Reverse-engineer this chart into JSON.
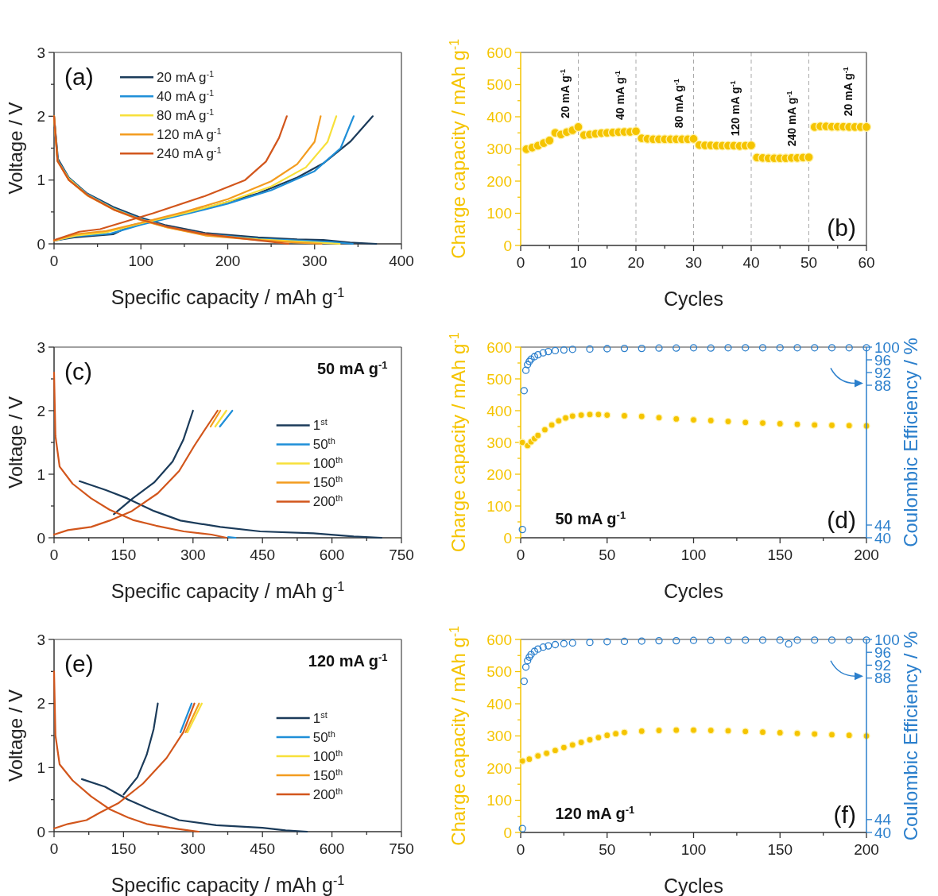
{
  "chart_data": [
    {
      "type": "line",
      "xlabel": "Specific capacity / mAh g$^{-1}$",
      "ylabel": "Voltage / V",
      "xlim": [
        0,
        400
      ],
      "ylim": [
        0,
        3
      ],
      "xticks": [
        0,
        {
          "value": 50,
          "label": null
        },
        100,
        {
          "value": 150,
          "label": null
        },
        200,
        {
          "value": 250,
          "label": null
        },
        300,
        {
          "value": 350,
          "label": null
        },
        400
      ],
      "yticks": [
        0,
        {
          "value": 0.5,
          "label": null
        },
        1,
        {
          "value": 1.5,
          "label": null
        },
        2,
        {
          "value": 2.5,
          "label": null
        },
        3
      ],
      "legend": "top left",
      "annotations": [
        "(a)"
      ],
      "series": [
        {
          "name": "20 mA g$^{-1}$",
          "color": "#1b3b5a",
          "x": [
            0,
            4.5,
            17,
            38,
            68,
            98,
            129,
            174,
            235,
            280,
            310,
            341,
            371
          ],
          "values": [
            2.0,
            1.33,
            1.04,
            0.79,
            0.58,
            0.42,
            0.29,
            0.17,
            0.1,
            0.07,
            0.06,
            0.02,
            0
          ]
        },
        {
          "color": "#1b3b5a",
          "x": [
            0,
            23,
            68,
            89,
            114,
            174,
            235,
            280,
            311,
            341,
            367
          ],
          "values": [
            0.05,
            0.1,
            0.15,
            0.29,
            0.37,
            0.56,
            0.79,
            1.04,
            1.27,
            1.6,
            2.0
          ]
        },
        {
          "name": "40 mA g$^{-1}$",
          "color": "#1f8fd8",
          "x": [
            0,
            4,
            17,
            38,
            68,
            98,
            130,
            175,
            235,
            290,
            320,
            344
          ],
          "values": [
            2.0,
            1.32,
            1.03,
            0.78,
            0.56,
            0.4,
            0.27,
            0.15,
            0.08,
            0.05,
            0.03,
            0
          ]
        },
        {
          "color": "#1f8fd8",
          "x": [
            0,
            25,
            65,
            100,
            150,
            200,
            250,
            300,
            330,
            345
          ],
          "values": [
            0.05,
            0.12,
            0.16,
            0.3,
            0.46,
            0.63,
            0.84,
            1.14,
            1.5,
            2.0
          ]
        },
        {
          "name": "80 mA g$^{-1}$",
          "color": "#f7e03a",
          "x": [
            0,
            4,
            17,
            38,
            68,
            98,
            130,
            175,
            235,
            290,
            329
          ],
          "values": [
            2.0,
            1.3,
            1.02,
            0.77,
            0.55,
            0.39,
            0.26,
            0.14,
            0.07,
            0.03,
            0
          ]
        },
        {
          "color": "#f7e03a",
          "x": [
            0,
            25,
            60,
            100,
            150,
            200,
            250,
            290,
            315,
            325
          ],
          "values": [
            0.05,
            0.13,
            0.18,
            0.32,
            0.48,
            0.66,
            0.9,
            1.2,
            1.6,
            2.0
          ]
        },
        {
          "name": "120 mA g$^{-1}$",
          "color": "#f39c1f",
          "x": [
            0,
            4,
            17,
            38,
            68,
            98,
            130,
            175,
            235,
            280,
            308
          ],
          "values": [
            2.0,
            1.3,
            1.0,
            0.76,
            0.54,
            0.38,
            0.26,
            0.13,
            0.06,
            0.02,
            0
          ]
        },
        {
          "color": "#f39c1f",
          "x": [
            0,
            25,
            60,
            100,
            150,
            200,
            250,
            280,
            300,
            307
          ],
          "values": [
            0.05,
            0.15,
            0.2,
            0.33,
            0.5,
            0.7,
            0.98,
            1.25,
            1.6,
            2.0
          ]
        },
        {
          "name": "240 mA g$^{-1}$",
          "color": "#d2561c",
          "x": [
            0,
            4,
            17,
            40,
            70,
            100,
            130,
            170,
            220,
            270
          ],
          "values": [
            2.0,
            1.3,
            1.0,
            0.75,
            0.53,
            0.38,
            0.27,
            0.16,
            0.08,
            0
          ]
        },
        {
          "color": "#d2561c",
          "x": [
            0,
            29,
            53,
            114,
            174,
            220,
            244,
            259,
            268
          ],
          "values": [
            0.06,
            0.19,
            0.23,
            0.48,
            0.75,
            1.0,
            1.29,
            1.66,
            2.0
          ]
        }
      ]
    },
    {
      "type": "scatter",
      "xlabel": "Cycles",
      "ylabel": "Charge capacity / mAh g$^{-1}$",
      "xlim": [
        0,
        60
      ],
      "ylim": [
        0,
        600
      ],
      "xticks": [
        0,
        {
          "value": 5,
          "label": null
        },
        10,
        {
          "value": 15,
          "label": null
        },
        20,
        {
          "value": 25,
          "label": null
        },
        30,
        {
          "value": 35,
          "label": null
        },
        40,
        {
          "value": 45,
          "label": null
        },
        50,
        {
          "value": 55,
          "label": null
        },
        60
      ],
      "yticks": [
        0,
        {
          "value": 50,
          "label": null
        },
        100,
        {
          "value": 150,
          "label": null
        },
        200,
        {
          "value": 250,
          "label": null
        },
        300,
        {
          "value": 350,
          "label": null
        },
        400,
        {
          "value": 450,
          "label": null
        },
        500,
        {
          "value": 550,
          "label": null
        },
        600
      ],
      "marker": "circle",
      "ref_lines": [
        {
          "axis": "x",
          "value": 10,
          "color": "#aaaaaa",
          "line_style": "dashed"
        },
        {
          "axis": "x",
          "value": 20,
          "color": "#aaaaaa",
          "line_style": "dashed"
        },
        {
          "axis": "x",
          "value": 30,
          "color": "#aaaaaa",
          "line_style": "dashed"
        },
        {
          "axis": "x",
          "value": 40,
          "color": "#aaaaaa",
          "line_style": "dashed"
        },
        {
          "axis": "x",
          "value": 50,
          "color": "#aaaaaa",
          "line_style": "dashed"
        }
      ],
      "annotations": [
        "(b)",
        "20 mA g$^{-1}$",
        "40 mA g$^{-1}$",
        "80 mA g$^{-1}$",
        "120 mA g$^{-1}$",
        "240 mA g$^{-1}$",
        "20 mA g$^{-1}$"
      ],
      "series": [
        {
          "color": "#f5c400",
          "x": [
            1,
            2,
            3,
            4,
            5,
            6,
            7,
            8,
            9,
            10,
            11,
            12,
            13,
            14,
            15,
            16,
            17,
            18,
            19,
            20,
            21,
            22,
            23,
            24,
            25,
            26,
            27,
            28,
            29,
            30,
            31,
            32,
            33,
            34,
            35,
            36,
            37,
            38,
            39,
            40,
            41,
            42,
            43,
            44,
            45,
            46,
            47,
            48,
            49,
            50,
            51,
            52,
            53,
            54,
            55,
            56,
            57,
            58,
            59,
            60
          ],
          "values": [
            299,
            304,
            310,
            318,
            326,
            350,
            345,
            352,
            358,
            368,
            343,
            345,
            347,
            349,
            350,
            351,
            352,
            353,
            353,
            355,
            333,
            331,
            330,
            330,
            330,
            330,
            330,
            330,
            330,
            331,
            312,
            311,
            311,
            310,
            310,
            310,
            310,
            309,
            310,
            311,
            273,
            272,
            271,
            271,
            271,
            271,
            272,
            272,
            273,
            274,
            368,
            370,
            370,
            369,
            369,
            369,
            368,
            368,
            368,
            368
          ]
        }
      ]
    },
    {
      "type": "line",
      "xlabel": "Specific capacity / mAh g$^{-1}$",
      "ylabel": "Voltage / V",
      "xlim": [
        0,
        750
      ],
      "ylim": [
        0,
        3
      ],
      "xticks": [
        0,
        {
          "value": 75,
          "label": null
        },
        150,
        {
          "value": 225,
          "label": null
        },
        300,
        {
          "value": 375,
          "label": null
        },
        450,
        {
          "value": 525,
          "label": null
        },
        600,
        {
          "value": 675,
          "label": null
        },
        750
      ],
      "yticks": [
        0,
        {
          "value": 0.5,
          "label": null
        },
        1,
        {
          "value": 1.5,
          "label": null
        },
        2,
        {
          "value": 2.5,
          "label": null
        },
        3
      ],
      "legend": "right",
      "annotations": [
        "(c)",
        "50 mA g$^{-1}$"
      ],
      "series": [
        {
          "name": "1$^{st}$",
          "color": "#1b3b5a",
          "x": [
            55,
            112,
            158,
            216,
            273,
            359,
            445,
            560,
            647,
            707
          ],
          "values": [
            0.89,
            0.75,
            0.62,
            0.42,
            0.27,
            0.17,
            0.1,
            0.07,
            0.02,
            0
          ]
        },
        {
          "color": "#1b3b5a",
          "x": [
            129,
            170,
            216,
            256,
            279,
            300
          ],
          "values": [
            0.37,
            0.62,
            0.87,
            1.2,
            1.54,
            2.0
          ]
        },
        {
          "color": "#1f8fd8",
          "x": [
            376,
            392
          ],
          "values": [
            0.01,
            0
          ]
        },
        {
          "name": "50$^{th}$",
          "color": "#1f8fd8",
          "x": [
            358,
            385
          ],
          "values": [
            1.75,
            2.0
          ]
        },
        {
          "name": "100$^{th}$",
          "color": "#f7e03a",
          "x": [
            348,
            372
          ],
          "values": [
            1.75,
            2.0
          ]
        },
        {
          "name": "150$^{th}$",
          "color": "#f39c1f",
          "x": [
            338,
            359
          ],
          "values": [
            1.75,
            2.0
          ]
        },
        {
          "color": "#d2561c",
          "x": [
            0,
            3,
            12,
            40,
            80,
            120,
            170,
            220,
            280,
            340,
            372
          ],
          "values": [
            2.6,
            1.6,
            1.12,
            0.85,
            0.62,
            0.44,
            0.28,
            0.19,
            0.1,
            0.05,
            0
          ]
        },
        {
          "name": "200$^{th}$",
          "color": "#d2561c",
          "x": [
            0,
            30,
            80,
            120,
            168,
            224,
            270,
            303,
            330,
            353
          ],
          "values": [
            0.05,
            0.12,
            0.17,
            0.27,
            0.42,
            0.7,
            1.05,
            1.45,
            1.75,
            2.0
          ]
        }
      ]
    },
    {
      "type": "scatter",
      "xlabel": "Cycles",
      "ylabel": "Charge capacity / mAh g$^{-1}$",
      "y2label": "Coulombic Efficiency / %",
      "xlim": [
        0,
        200
      ],
      "ylim": [
        0,
        600
      ],
      "y2lim": [
        40,
        100
      ],
      "xticks": [
        0,
        {
          "value": 25,
          "label": null
        },
        50,
        {
          "value": 75,
          "label": null
        },
        100,
        {
          "value": 125,
          "label": null
        },
        150,
        {
          "value": 175,
          "label": null
        },
        200
      ],
      "yticks": [
        0,
        {
          "value": 50,
          "label": null
        },
        100,
        {
          "value": 150,
          "label": null
        },
        200,
        {
          "value": 250,
          "label": null
        },
        300,
        {
          "value": 350,
          "label": null
        },
        400,
        {
          "value": 450,
          "label": null
        },
        500,
        {
          "value": 550,
          "label": null
        },
        600
      ],
      "y2ticks": [
        40,
        44,
        88,
        92,
        96,
        100
      ],
      "marker": "circle",
      "annotations": [
        "50 mA g$^{-1}$",
        "(d)"
      ],
      "series": [
        {
          "color": "#f5c400",
          "x": [
            1,
            4,
            6,
            8,
            10,
            14,
            18,
            22,
            26,
            30,
            35,
            40,
            45,
            50,
            60,
            70,
            80,
            90,
            100,
            110,
            120,
            130,
            140,
            150,
            160,
            170,
            180,
            190,
            200
          ],
          "values": [
            300,
            290,
            302,
            312,
            322,
            340,
            355,
            368,
            377,
            383,
            386,
            388,
            388,
            386,
            384,
            382,
            378,
            374,
            371,
            369,
            366,
            363,
            361,
            359,
            357,
            355,
            354,
            353,
            352
          ]
        },
        {
          "color": "#2b7fcc",
          "axis": "y2",
          "x": [
            1,
            2,
            3,
            4,
            5,
            6,
            8,
            10,
            13,
            16,
            20,
            25,
            30,
            40,
            50,
            60,
            70,
            80,
            90,
            100,
            110,
            120,
            130,
            140,
            150,
            160,
            170,
            180,
            190,
            200
          ],
          "values": [
            42.6,
            86.3,
            92.7,
            94.5,
            95.5,
            96.2,
            97,
            97.6,
            98.2,
            98.6,
            98.9,
            99.1,
            99.3,
            99.4,
            99.5,
            99.6,
            99.6,
            99.7,
            99.7,
            99.8,
            99.7,
            99.8,
            99.8,
            99.8,
            99.8,
            99.8,
            99.8,
            99.8,
            99.8,
            99.8
          ]
        }
      ]
    },
    {
      "type": "line",
      "xlabel": "Specific capacity / mAh g$^{-1}$",
      "ylabel": "Voltage / V",
      "xlim": [
        0,
        750
      ],
      "ylim": [
        0,
        3
      ],
      "xticks": [
        0,
        {
          "value": 75,
          "label": null
        },
        150,
        {
          "value": 225,
          "label": null
        },
        300,
        {
          "value": 375,
          "label": null
        },
        450,
        {
          "value": 525,
          "label": null
        },
        600,
        {
          "value": 675,
          "label": null
        },
        750
      ],
      "yticks": [
        0,
        {
          "value": 0.5,
          "label": null
        },
        1,
        {
          "value": 1.5,
          "label": null
        },
        2,
        {
          "value": 2.5,
          "label": null
        },
        3
      ],
      "legend": "right",
      "annotations": [
        "(e)",
        "120 mA g$^{-1}$"
      ],
      "series": [
        {
          "name": "1$^{st}$",
          "color": "#1b3b5a",
          "x": [
            60,
            110,
            160,
            210,
            270,
            350,
            450,
            500,
            546
          ],
          "values": [
            0.82,
            0.7,
            0.5,
            0.34,
            0.18,
            0.1,
            0.06,
            0.02,
            0
          ]
        },
        {
          "color": "#1b3b5a",
          "x": [
            150,
            180,
            200,
            215,
            224
          ],
          "values": [
            0.58,
            0.85,
            1.2,
            1.6,
            2.0
          ]
        },
        {
          "name": "50$^{th}$",
          "color": "#1f8fd8",
          "x": [
            273,
            297
          ],
          "values": [
            1.55,
            2.0
          ]
        },
        {
          "name": "100$^{th}$",
          "color": "#f7e03a",
          "x": [
            288,
            319
          ],
          "values": [
            1.55,
            2.0
          ]
        },
        {
          "name": "150$^{th}$",
          "color": "#f39c1f",
          "x": [
            284,
            313
          ],
          "values": [
            1.55,
            2.0
          ]
        },
        {
          "color": "#d2561c",
          "x": [
            0,
            3,
            12,
            40,
            80,
            120,
            160,
            200,
            250,
            290,
            312
          ],
          "values": [
            2.5,
            1.5,
            1.05,
            0.8,
            0.55,
            0.35,
            0.22,
            0.12,
            0.06,
            0.02,
            0
          ]
        },
        {
          "name": "200$^{th}$",
          "color": "#d2561c",
          "x": [
            0,
            30,
            70,
            100,
            140,
            192,
            243,
            279,
            303
          ],
          "values": [
            0.05,
            0.12,
            0.18,
            0.3,
            0.45,
            0.75,
            1.15,
            1.55,
            2.0
          ]
        }
      ]
    },
    {
      "type": "scatter",
      "xlabel": "Cycles",
      "ylabel": "Charge capacity / mAh g$^{-1}$",
      "y2label": "Coulombic Efficiency / %",
      "xlim": [
        0,
        200
      ],
      "ylim": [
        0,
        600
      ],
      "y2lim": [
        40,
        100
      ],
      "xticks": [
        0,
        {
          "value": 25,
          "label": null
        },
        50,
        {
          "value": 75,
          "label": null
        },
        100,
        {
          "value": 125,
          "label": null
        },
        150,
        {
          "value": 175,
          "label": null
        },
        200
      ],
      "yticks": [
        0,
        {
          "value": 50,
          "label": null
        },
        100,
        {
          "value": 150,
          "label": null
        },
        200,
        {
          "value": 250,
          "label": null
        },
        300,
        {
          "value": 350,
          "label": null
        },
        400,
        {
          "value": 450,
          "label": null
        },
        500,
        {
          "value": 550,
          "label": null
        },
        600
      ],
      "y2ticks": [
        40,
        44,
        88,
        92,
        96,
        100
      ],
      "marker": "circle",
      "annotations": [
        "120 mA g$^{-1}$",
        "(f)"
      ],
      "series": [
        {
          "color": "#f5c400",
          "x": [
            1,
            5,
            10,
            15,
            20,
            25,
            30,
            35,
            40,
            45,
            50,
            55,
            60,
            70,
            80,
            90,
            100,
            110,
            120,
            130,
            140,
            150,
            160,
            170,
            180,
            190,
            200
          ],
          "values": [
            222,
            228,
            238,
            246,
            255,
            264,
            272,
            280,
            288,
            295,
            302,
            307,
            311,
            315,
            317,
            318,
            318,
            317,
            316,
            314,
            312,
            310,
            308,
            306,
            304,
            302,
            300
          ]
        },
        {
          "color": "#2b7fcc",
          "axis": "y2",
          "x": [
            1,
            2,
            3,
            4,
            5,
            6,
            8,
            10,
            13,
            16,
            20,
            25,
            30,
            40,
            50,
            60,
            70,
            80,
            90,
            100,
            110,
            120,
            130,
            140,
            150,
            155,
            160,
            170,
            180,
            190,
            200
          ],
          "values": [
            41.2,
            87,
            91.4,
            93.4,
            94.5,
            95.3,
            96.3,
            97,
            97.6,
            98,
            98.4,
            98.7,
            98.9,
            99.1,
            99.3,
            99.4,
            99.5,
            99.6,
            99.6,
            99.7,
            99.7,
            99.7,
            99.8,
            99.8,
            99.8,
            98.6,
            99.8,
            99.8,
            99.8,
            99.8,
            99.8
          ]
        }
      ]
    }
  ]
}
